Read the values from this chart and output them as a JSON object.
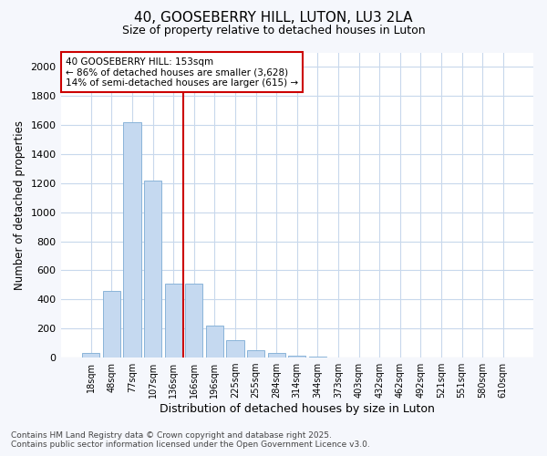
{
  "title1": "40, GOOSEBERRY HILL, LUTON, LU3 2LA",
  "title2": "Size of property relative to detached houses in Luton",
  "xlabel": "Distribution of detached houses by size in Luton",
  "ylabel": "Number of detached properties",
  "categories": [
    "18sqm",
    "48sqm",
    "77sqm",
    "107sqm",
    "136sqm",
    "166sqm",
    "196sqm",
    "225sqm",
    "255sqm",
    "284sqm",
    "314sqm",
    "344sqm",
    "373sqm",
    "403sqm",
    "432sqm",
    "462sqm",
    "492sqm",
    "521sqm",
    "551sqm",
    "580sqm",
    "610sqm"
  ],
  "values": [
    35,
    460,
    1620,
    1220,
    510,
    510,
    220,
    120,
    50,
    30,
    10,
    5,
    0,
    0,
    0,
    0,
    0,
    0,
    0,
    0,
    0
  ],
  "red_line_index": 5,
  "bar_color": "#c5d9f0",
  "bar_edge_color": "#8ab4d9",
  "highlight_line_color": "#cc0000",
  "annotation_box_facecolor": "#ffffff",
  "annotation_box_edgecolor": "#cc0000",
  "annotation_text1": "40 GOOSEBERRY HILL: 153sqm",
  "annotation_text2": "← 86% of detached houses are smaller (3,628)",
  "annotation_text3": "14% of semi-detached houses are larger (615) →",
  "ylim": [
    0,
    2100
  ],
  "yticks": [
    0,
    200,
    400,
    600,
    800,
    1000,
    1200,
    1400,
    1600,
    1800,
    2000
  ],
  "footer1": "Contains HM Land Registry data © Crown copyright and database right 2025.",
  "footer2": "Contains public sector information licensed under the Open Government Licence v3.0.",
  "fig_background": "#f5f7fc",
  "plot_background": "#ffffff",
  "grid_color": "#c8d8ec",
  "title1_fontsize": 11,
  "title2_fontsize": 9,
  "ylabel_fontsize": 8.5,
  "xlabel_fontsize": 9,
  "tick_fontsize": 8,
  "xtick_fontsize": 7,
  "footer_fontsize": 6.5
}
